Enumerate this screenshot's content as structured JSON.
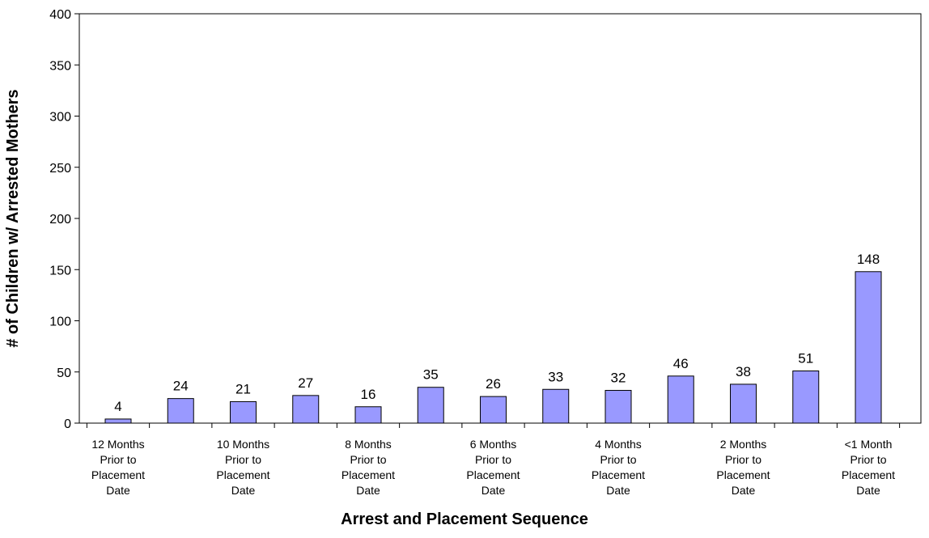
{
  "chart_data": {
    "type": "bar",
    "x_label": "Arrest and Placement Sequence",
    "y_label": "# of Children w/ Arrested Mothers",
    "categories": [
      "12 Months Prior to Placement Date",
      null,
      "10 Months Prior to Placement Date",
      null,
      "8 Months Prior to Placement Date",
      null,
      "6 Months Prior to Placement Date",
      null,
      "4 Months Prior to Placement Date",
      null,
      "2 Months Prior to Placement Date",
      null,
      "<1 Month Prior to Placement Date"
    ],
    "values": [
      4,
      24,
      21,
      27,
      16,
      35,
      26,
      33,
      32,
      46,
      38,
      51,
      148
    ],
    "color": "#9999ff",
    "ylim": [
      0,
      400
    ],
    "yticks": [
      0,
      50,
      100,
      150,
      200,
      250,
      300,
      350,
      400
    ],
    "grid": false
  }
}
